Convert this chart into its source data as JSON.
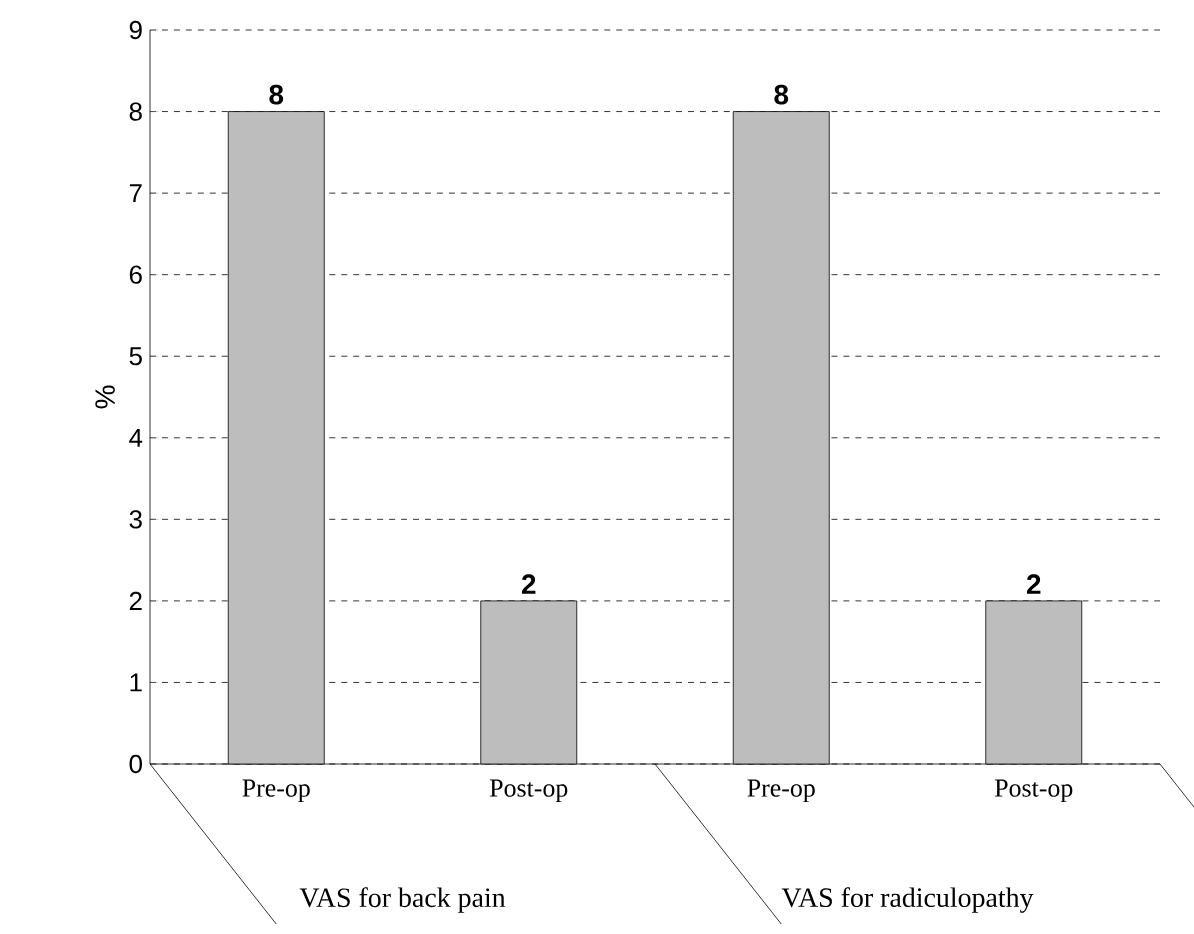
{
  "chart_data": {
    "type": "bar",
    "ylabel": "%",
    "categories": [
      "Pre-op",
      "Post-op",
      "Pre-op",
      "Post-op"
    ],
    "values": [
      8,
      2,
      8,
      2
    ],
    "color": "#bdbdbd",
    "ylim": [
      0,
      9
    ],
    "yticks": [
      0,
      1,
      2,
      3,
      4,
      5,
      6,
      7,
      8,
      9
    ],
    "grid": "y",
    "data_labels": true,
    "annotations": [
      "VAS for back pain",
      "VAS for radiculopathy"
    ]
  }
}
